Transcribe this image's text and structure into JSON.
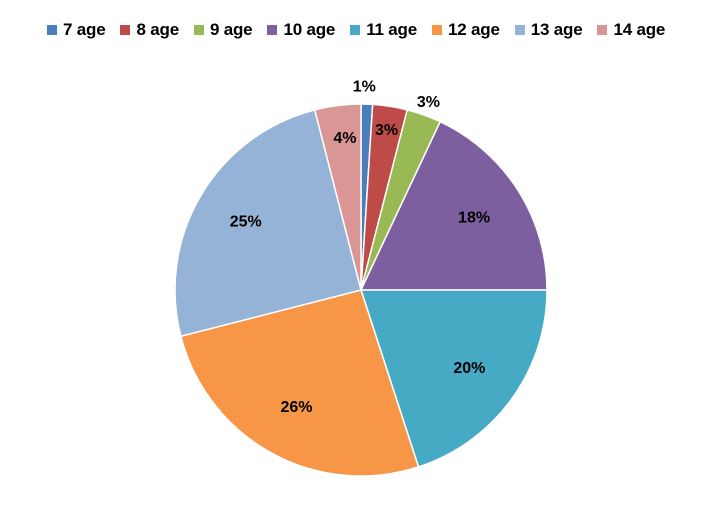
{
  "chart_data": {
    "type": "pie",
    "title": "",
    "legend_position": "top",
    "categories": [
      "7 age",
      "8 age",
      "9 age",
      "10 age",
      "11 age",
      "12 age",
      "13 age",
      "14 age"
    ],
    "values": [
      1,
      3,
      3,
      18,
      20,
      26,
      25,
      4
    ],
    "data_labels": [
      "1%",
      "3%",
      "3%",
      "18%",
      "20%",
      "26%",
      "25%",
      "4%"
    ],
    "colors": [
      "#4A7EBB",
      "#BE4B48",
      "#98B954",
      "#7D5FA0",
      "#46AAC5",
      "#F79646",
      "#95B3D7",
      "#D99694"
    ],
    "start_angle_degrees": 0,
    "direction": "clockwise"
  }
}
